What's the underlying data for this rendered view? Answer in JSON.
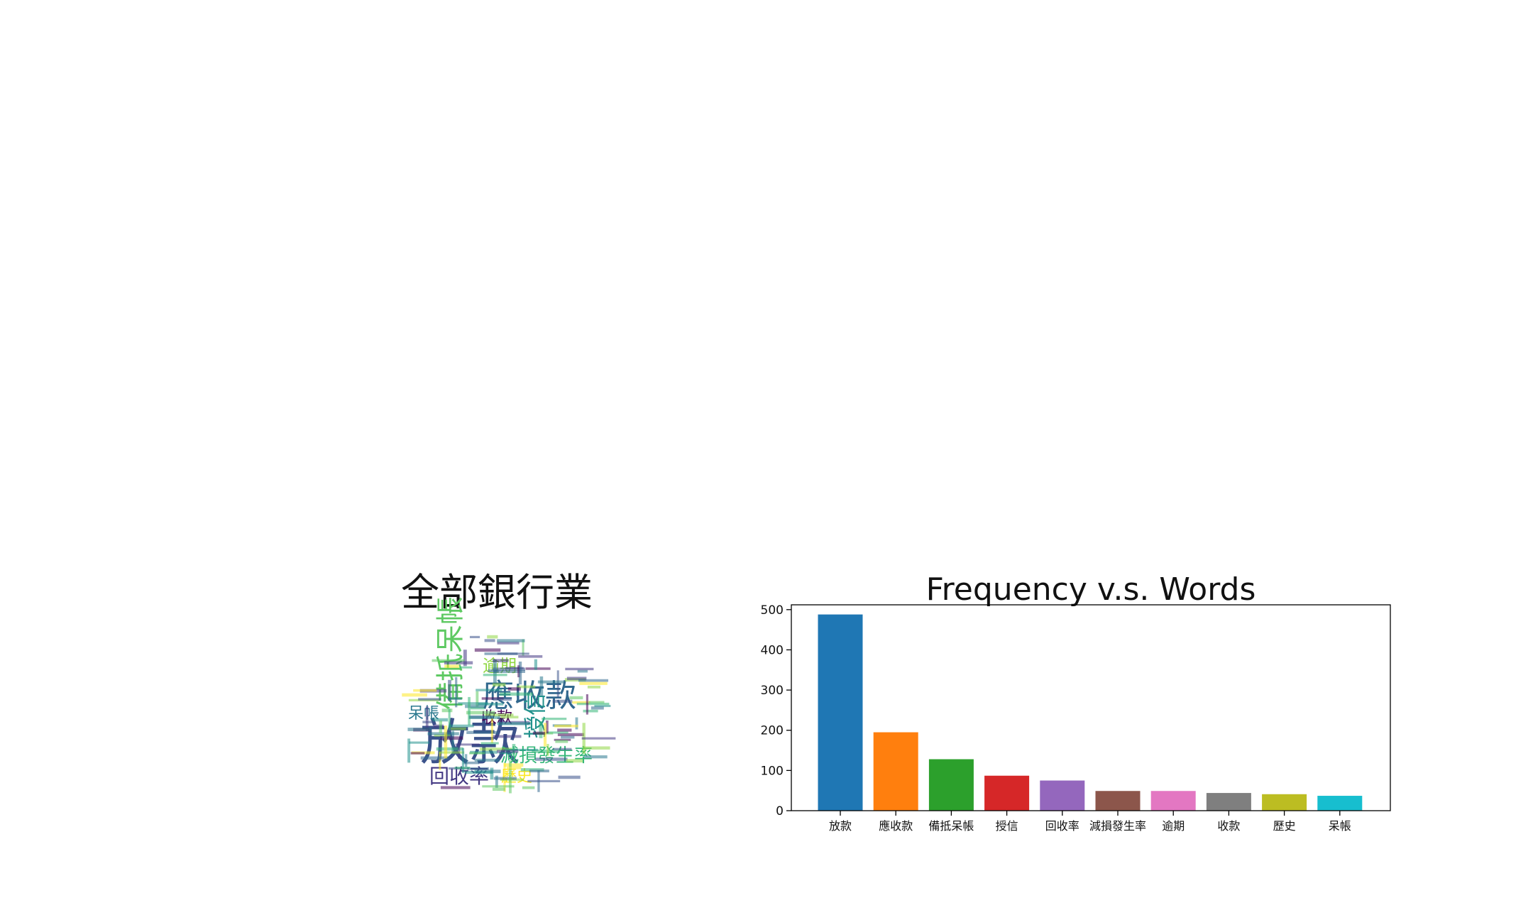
{
  "wordcloud": {
    "title": "全部銀行業",
    "words": [
      {
        "text": "放款",
        "color": "#3b528b"
      },
      {
        "text": "應收款",
        "color": "#31688e"
      },
      {
        "text": "備抵呆帳",
        "color": "#5ec962"
      },
      {
        "text": "授信",
        "color": "#21918c"
      },
      {
        "text": "回收率",
        "color": "#443983"
      },
      {
        "text": "減損發生率",
        "color": "#35b779"
      },
      {
        "text": "逾期",
        "color": "#90d743"
      },
      {
        "text": "收款",
        "color": "#440154"
      },
      {
        "text": "呆帳",
        "color": "#2a788e"
      },
      {
        "text": "歷史",
        "color": "#fde725"
      }
    ]
  },
  "chart_data": {
    "type": "bar",
    "title": "Frequency v.s. Words",
    "xlabel": "",
    "ylabel": "",
    "categories": [
      "放款",
      "應收款",
      "備抵呆帳",
      "授信",
      "回收率",
      "減損發生率",
      "逾期",
      "收款",
      "歷史",
      "呆帳"
    ],
    "values": [
      488,
      195,
      128,
      87,
      75,
      49,
      49,
      44,
      41,
      37
    ],
    "colors": [
      "#1f77b4",
      "#ff7f0e",
      "#2ca02c",
      "#d62728",
      "#9467bd",
      "#8c564b",
      "#e377c2",
      "#7f7f7f",
      "#bcbd22",
      "#17becf"
    ],
    "yticks": [
      0,
      100,
      200,
      300,
      400,
      500
    ],
    "ylim": [
      0,
      512
    ],
    "grid": false
  }
}
